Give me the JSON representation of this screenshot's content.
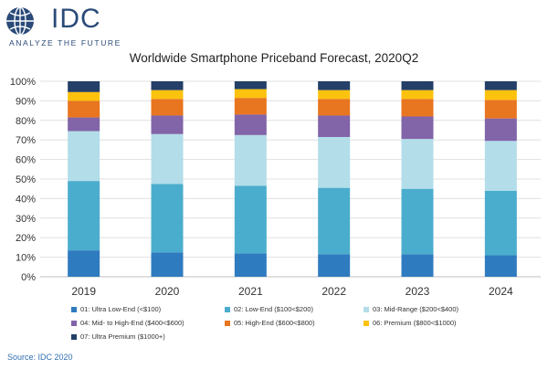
{
  "logo": {
    "name": "IDC",
    "tagline": "ANALYZE THE FUTURE"
  },
  "source": "Source: IDC 2020",
  "colors": {
    "01": "#2f7bbf",
    "02": "#4badcd",
    "03": "#b2dde9",
    "04": "#8264a8",
    "05": "#e8751f",
    "06": "#fcc20e",
    "07": "#243f68"
  },
  "chart_data": {
    "type": "bar",
    "stacked": true,
    "title": "Worldwide Smartphone Priceband Forecast, 2020Q2",
    "categories": [
      "2019",
      "2020",
      "2021",
      "2022",
      "2023",
      "2024"
    ],
    "ylim": [
      0,
      100
    ],
    "yticks": [
      "0%",
      "10%",
      "20%",
      "30%",
      "40%",
      "50%",
      "60%",
      "70%",
      "80%",
      "90%",
      "100%"
    ],
    "grid": true,
    "legend_position": "bottom",
    "series": [
      {
        "name": "01: Ultra Low-End (<$100)",
        "color": "#2f7bbf",
        "values": [
          13.5,
          12.5,
          12.0,
          11.5,
          11.5,
          11.0
        ]
      },
      {
        "name": "02: Low-End ($100<$200)",
        "color": "#4badcd",
        "values": [
          35.5,
          35.0,
          34.5,
          34.0,
          33.5,
          33.0
        ]
      },
      {
        "name": "03: Mid-Range ($200<$400)",
        "color": "#b2dde9",
        "values": [
          25.5,
          25.5,
          26.0,
          26.0,
          25.5,
          25.5
        ]
      },
      {
        "name": "04: Mid- to High-End ($400<$600)",
        "color": "#8264a8",
        "values": [
          7.0,
          9.5,
          10.5,
          11.0,
          11.5,
          11.5
        ]
      },
      {
        "name": "05: High-End ($600<$800)",
        "color": "#e8751f",
        "values": [
          8.5,
          8.5,
          8.5,
          8.5,
          9.0,
          9.5
        ]
      },
      {
        "name": "06: Premium ($800<$1000)",
        "color": "#fcc20e",
        "values": [
          4.5,
          4.5,
          4.5,
          4.5,
          4.5,
          5.0
        ]
      },
      {
        "name": "07: Ultra Premium ($1000+)",
        "color": "#243f68",
        "values": [
          5.5,
          4.5,
          4.0,
          4.5,
          4.5,
          4.5
        ]
      }
    ]
  }
}
